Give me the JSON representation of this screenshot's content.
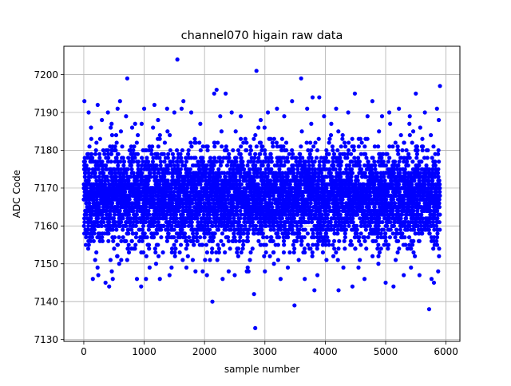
{
  "chart_data": {
    "type": "scatter",
    "title": "channel070 higain raw data",
    "xlabel": "sample number",
    "ylabel": "ADC Code",
    "xlim": [
      -330,
      6230
    ],
    "ylim": [
      7129.5,
      7207.5
    ],
    "xticks": [
      0,
      1000,
      2000,
      3000,
      4000,
      5000,
      6000
    ],
    "yticks": [
      7130,
      7140,
      7150,
      7160,
      7170,
      7180,
      7190,
      7200
    ],
    "grid": true,
    "marker_color": "#0000ff",
    "series": [
      {
        "n_points": 5900,
        "typical_range": [
          7150,
          7185
        ],
        "points": [
          [
            10,
            7193
          ],
          [
            80,
            7190
          ],
          [
            120,
            7186
          ],
          [
            150,
            7146
          ],
          [
            230,
            7192
          ],
          [
            240,
            7147
          ],
          [
            300,
            7188
          ],
          [
            360,
            7145
          ],
          [
            400,
            7190
          ],
          [
            420,
            7144
          ],
          [
            480,
            7146
          ],
          [
            560,
            7191
          ],
          [
            600,
            7193
          ],
          [
            620,
            7151
          ],
          [
            700,
            7189
          ],
          [
            720,
            7199
          ],
          [
            850,
            7187
          ],
          [
            880,
            7146
          ],
          [
            950,
            7144
          ],
          [
            1000,
            7191
          ],
          [
            1030,
            7146
          ],
          [
            1090,
            7149
          ],
          [
            1170,
            7192
          ],
          [
            1230,
            7188
          ],
          [
            1260,
            7146
          ],
          [
            1380,
            7191
          ],
          [
            1420,
            7147
          ],
          [
            1500,
            7190
          ],
          [
            1550,
            7204
          ],
          [
            1620,
            7191
          ],
          [
            1650,
            7193
          ],
          [
            1700,
            7149
          ],
          [
            1780,
            7190
          ],
          [
            1850,
            7148
          ],
          [
            1930,
            7187
          ],
          [
            1970,
            7148
          ],
          [
            2040,
            7147
          ],
          [
            2090,
            7151
          ],
          [
            2130,
            7140
          ],
          [
            2160,
            7195
          ],
          [
            2200,
            7196
          ],
          [
            2260,
            7189
          ],
          [
            2300,
            7146
          ],
          [
            2350,
            7195
          ],
          [
            2400,
            7148
          ],
          [
            2450,
            7190
          ],
          [
            2500,
            7147
          ],
          [
            2600,
            7189
          ],
          [
            2700,
            7148
          ],
          [
            2820,
            7142
          ],
          [
            2840,
            7133
          ],
          [
            2860,
            7201
          ],
          [
            2930,
            7188
          ],
          [
            3000,
            7148
          ],
          [
            3050,
            7190
          ],
          [
            3150,
            7150
          ],
          [
            3200,
            7191
          ],
          [
            3260,
            7146
          ],
          [
            3320,
            7189
          ],
          [
            3380,
            7149
          ],
          [
            3450,
            7193
          ],
          [
            3490,
            7139
          ],
          [
            3560,
            7151
          ],
          [
            3600,
            7199
          ],
          [
            3660,
            7146
          ],
          [
            3700,
            7191
          ],
          [
            3790,
            7194
          ],
          [
            3820,
            7143
          ],
          [
            3870,
            7147
          ],
          [
            3900,
            7194
          ],
          [
            3980,
            7189
          ],
          [
            4020,
            7151
          ],
          [
            4100,
            7187
          ],
          [
            4180,
            7191
          ],
          [
            4220,
            7143
          ],
          [
            4300,
            7149
          ],
          [
            4380,
            7190
          ],
          [
            4450,
            7144
          ],
          [
            4490,
            7195
          ],
          [
            4550,
            7149
          ],
          [
            4650,
            7146
          ],
          [
            4700,
            7189
          ],
          [
            4780,
            7193
          ],
          [
            4880,
            7150
          ],
          [
            4940,
            7189
          ],
          [
            5000,
            7145
          ],
          [
            5060,
            7190
          ],
          [
            5130,
            7144
          ],
          [
            5220,
            7191
          ],
          [
            5300,
            7147
          ],
          [
            5400,
            7189
          ],
          [
            5420,
            7149
          ],
          [
            5500,
            7195
          ],
          [
            5560,
            7147
          ],
          [
            5650,
            7190
          ],
          [
            5720,
            7138
          ],
          [
            5760,
            7146
          ],
          [
            5800,
            7145
          ],
          [
            5850,
            7191
          ],
          [
            5870,
            7148
          ],
          [
            5900,
            7197
          ],
          [
            5880,
            7188
          ]
        ]
      }
    ]
  }
}
